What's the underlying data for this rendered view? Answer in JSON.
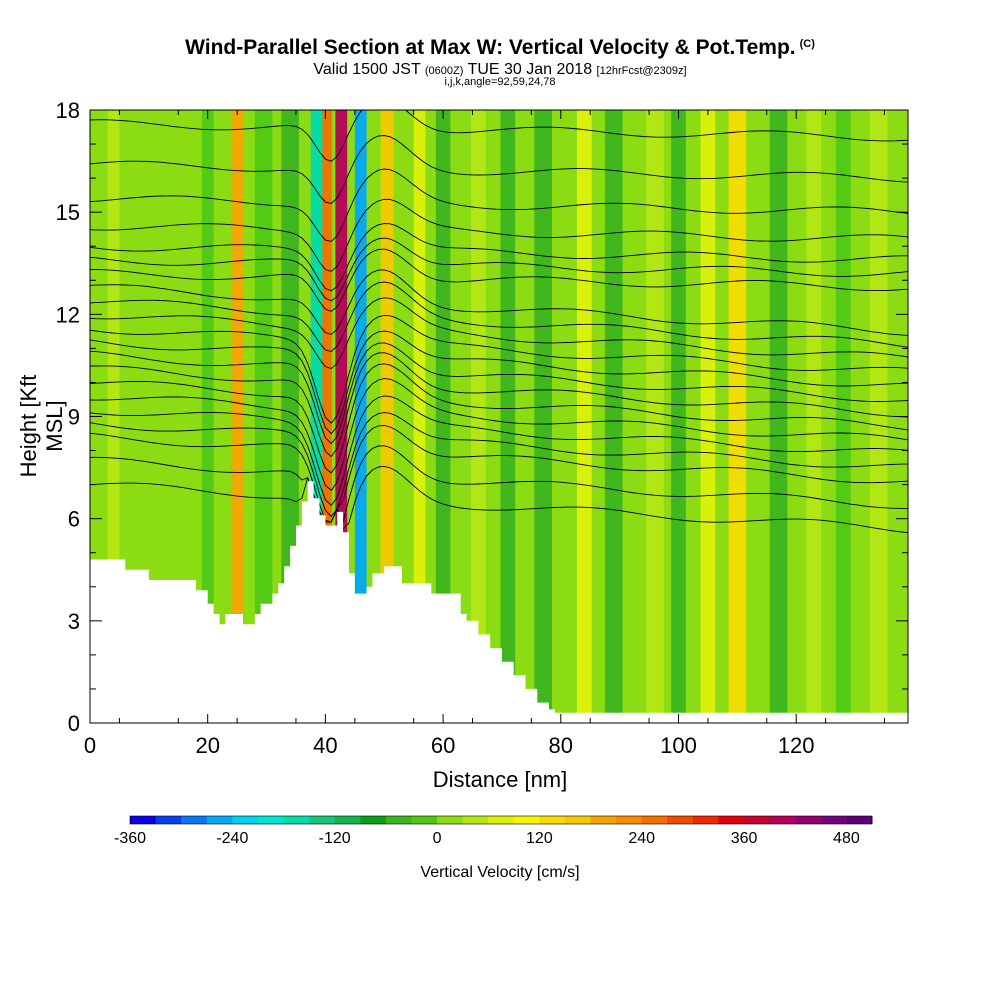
{
  "header": {
    "title": "Wind-Parallel Section at Max W: Vertical Velocity & Pot.Temp.",
    "title_mark": "(C)",
    "valid_prefix": "Valid 1500 JST",
    "valid_utc": "(0600Z)",
    "valid_date": "TUE 30 Jan 2018",
    "forecast": "[12hrFcst@2309z]",
    "indices": "i,j,k,angle=92,59,24,78"
  },
  "chart_data": {
    "type": "heatmap",
    "xlabel": "Distance [nm]",
    "ylabel": "Height [Kft MSL]",
    "xlim": [
      0,
      139
    ],
    "ylim": [
      0,
      18
    ],
    "x_ticks": [
      0,
      20,
      40,
      60,
      80,
      100,
      120
    ],
    "y_ticks": [
      0,
      3,
      6,
      9,
      12,
      15,
      18
    ],
    "colorbar": {
      "title": "Vertical Velocity [cm/s]",
      "tick_labels": [
        "-360",
        "-240",
        "-120",
        "0",
        "120",
        "240",
        "360",
        "480"
      ],
      "tick_values": [
        -360,
        -240,
        -120,
        0,
        120,
        240,
        360,
        480
      ],
      "levels": [
        -360,
        -330,
        -300,
        -270,
        -240,
        -210,
        -180,
        -150,
        -120,
        -90,
        -60,
        -30,
        0,
        30,
        60,
        90,
        120,
        150,
        180,
        210,
        240,
        270,
        300,
        330,
        360,
        390,
        420,
        450,
        480,
        510
      ],
      "colors": [
        "#0a00e6",
        "#0a3cf0",
        "#0a78f5",
        "#00a8f5",
        "#00d2f0",
        "#00e6d2",
        "#00dcaa",
        "#14c878",
        "#14b450",
        "#0aa01e",
        "#3cb41e",
        "#50c814",
        "#8cdc14",
        "#b4e614",
        "#dcf00a",
        "#f5f500",
        "#f5dc00",
        "#f5c800",
        "#f5a500",
        "#f58c00",
        "#f56e00",
        "#f04b00",
        "#eb2800",
        "#e1000a",
        "#c80032",
        "#b4005a",
        "#96006e",
        "#780082",
        "#5a0078"
      ]
    },
    "terrain_kft": {
      "x": [
        0,
        5,
        6,
        9,
        10,
        17,
        18,
        20,
        21,
        22,
        23,
        24,
        25,
        26,
        28,
        29,
        31,
        32,
        33,
        34,
        35,
        36,
        37,
        38,
        39,
        40,
        41,
        42,
        43,
        44,
        45,
        46,
        47,
        48,
        50,
        52,
        53,
        58,
        59,
        60,
        62,
        63,
        64,
        66,
        68,
        70,
        72,
        74,
        76,
        78,
        79,
        80,
        139
      ],
      "y": [
        4.8,
        4.8,
        4.5,
        4.5,
        4.2,
        4.2,
        3.9,
        3.5,
        3.2,
        2.9,
        3.2,
        3.2,
        3.2,
        2.9,
        3.2,
        3.5,
        3.8,
        4.1,
        4.6,
        5.2,
        5.8,
        6.5,
        7.1,
        6.6,
        6.1,
        5.8,
        5.8,
        6.2,
        5.6,
        4.4,
        3.8,
        3.8,
        4.0,
        4.4,
        4.6,
        4.6,
        4.1,
        3.8,
        3.8,
        3.8,
        3.8,
        3.2,
        3.0,
        2.6,
        2.2,
        1.8,
        1.4,
        1.0,
        0.6,
        0.4,
        0.3,
        0.3,
        0.3
      ]
    },
    "vertical_velocity_bands": [
      {
        "x": 4,
        "width": 2,
        "value": 45
      },
      {
        "x": 11,
        "width": 2,
        "value": 15
      },
      {
        "x": 20,
        "width": 2,
        "value": -5
      },
      {
        "x": 25,
        "width": 2,
        "value": 190
      },
      {
        "x": 29.5,
        "width": 3,
        "value": -30
      },
      {
        "x": 34,
        "width": 3,
        "value": -60
      },
      {
        "x": 38.5,
        "width": 2,
        "value": -160
      },
      {
        "x": 40.3,
        "width": 1.6,
        "value": 250
      },
      {
        "x": 42.7,
        "width": 2,
        "value": 400
      },
      {
        "x": 46,
        "width": 2,
        "value": -260
      },
      {
        "x": 50.5,
        "width": 2.2,
        "value": 170
      },
      {
        "x": 56,
        "width": 2,
        "value": 60
      },
      {
        "x": 60,
        "width": 2.5,
        "value": -45
      },
      {
        "x": 66,
        "width": 2.5,
        "value": 50
      },
      {
        "x": 71,
        "width": 2.5,
        "value": -40
      },
      {
        "x": 77,
        "width": 3,
        "value": -50
      },
      {
        "x": 84,
        "width": 2.5,
        "value": 60
      },
      {
        "x": 89,
        "width": 3,
        "value": -50
      },
      {
        "x": 96,
        "width": 3,
        "value": 35
      },
      {
        "x": 100,
        "width": 2.5,
        "value": -35
      },
      {
        "x": 105,
        "width": 2.5,
        "value": 80
      },
      {
        "x": 110,
        "width": 3,
        "value": 120
      },
      {
        "x": 117,
        "width": 3,
        "value": -35
      },
      {
        "x": 123,
        "width": 2.5,
        "value": 55
      },
      {
        "x": 128,
        "width": 2.5,
        "value": -30
      },
      {
        "x": 134,
        "width": 3,
        "value": 45
      }
    ],
    "potential_temperature": {
      "line_color": "#000000",
      "levels_y_kft_at_x0": [
        7.0,
        7.7,
        8.4,
        8.8,
        9.2,
        9.6,
        10.0,
        10.4,
        10.8,
        11.2,
        11.6,
        12.0,
        12.4,
        12.8,
        13.2,
        13.6,
        14.0,
        14.6,
        15.4,
        16.4,
        17.6
      ]
    }
  }
}
